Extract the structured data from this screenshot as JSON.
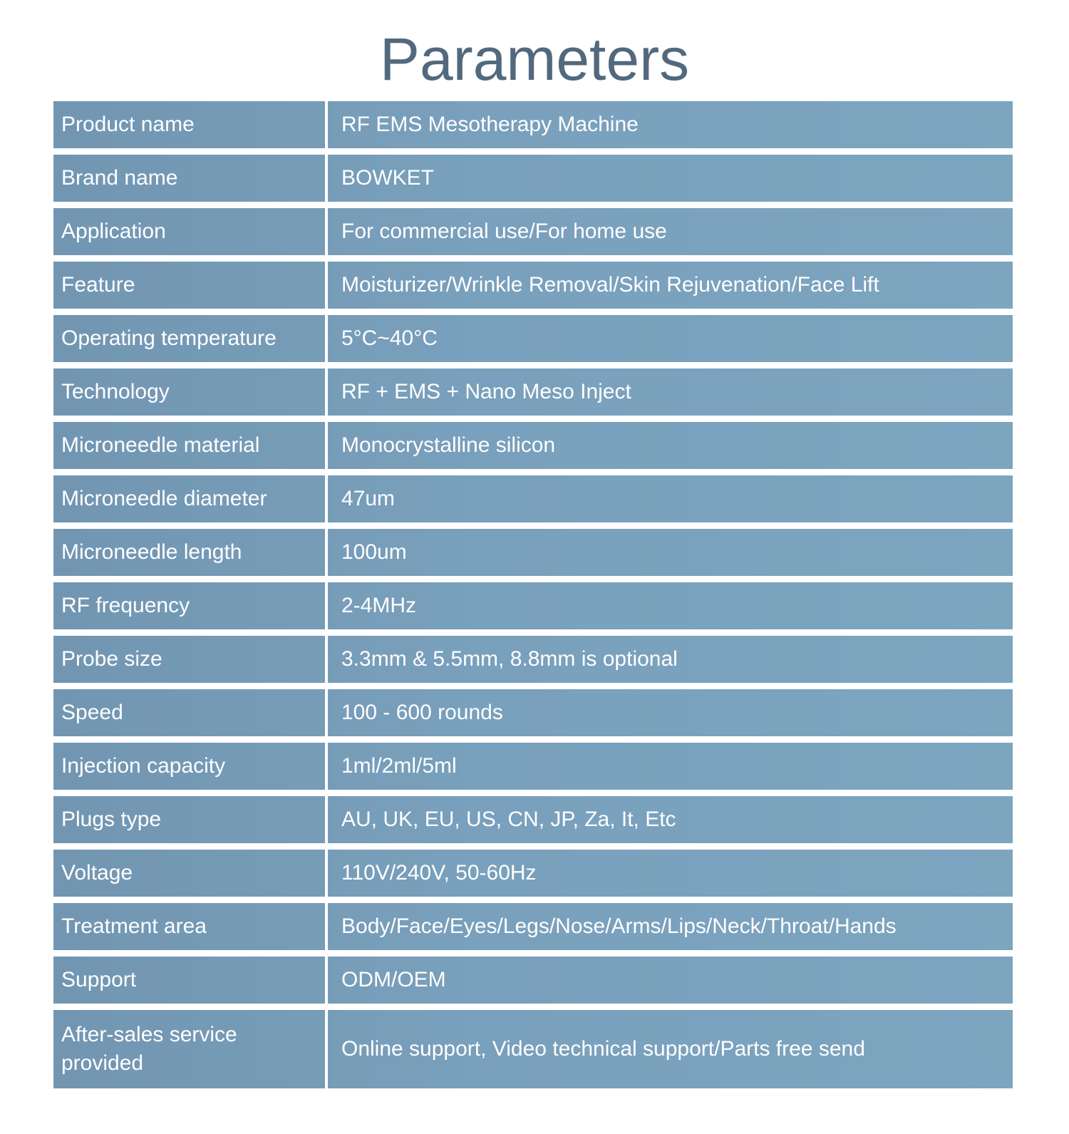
{
  "page": {
    "title": "Parameters"
  },
  "colors": {
    "title_text": "#52697d",
    "cell_background": "#79a0bc",
    "cell_text": "#ffffff",
    "divider": "#ffffff",
    "page_background": "#ffffff"
  },
  "table": {
    "rows": [
      {
        "label": "Product name",
        "value": "RF EMS Mesotherapy Machine"
      },
      {
        "label": "Brand name",
        "value": "BOWKET"
      },
      {
        "label": "Application",
        "value": "For commercial use/For home use"
      },
      {
        "label": "Feature",
        "value": "Moisturizer/Wrinkle Removal/Skin Rejuvenation/Face Lift"
      },
      {
        "label": "Operating temperature",
        "value": "5°C~40°C"
      },
      {
        "label": "Technology",
        "value": "RF + EMS + Nano Meso Inject"
      },
      {
        "label": "Microneedle material",
        "value": "Monocrystalline silicon"
      },
      {
        "label": "Microneedle diameter",
        "value": "47um"
      },
      {
        "label": "Microneedle length",
        "value": "100um"
      },
      {
        "label": "RF frequency",
        "value": "2-4MHz"
      },
      {
        "label": "Probe size",
        "value": "3.3mm & 5.5mm, 8.8mm is optional"
      },
      {
        "label": "Speed",
        "value": "100 - 600 rounds"
      },
      {
        "label": "Injection capacity",
        "value": "1ml/2ml/5ml"
      },
      {
        "label": "Plugs type",
        "value": "AU, UK, EU, US, CN, JP, Za, It, Etc"
      },
      {
        "label": "Voltage",
        "value": "110V/240V, 50-60Hz"
      },
      {
        "label": "Treatment area",
        "value": "Body/Face/Eyes/Legs/Nose/Arms/Lips/Neck/Throat/Hands"
      },
      {
        "label": "Support",
        "value": "ODM/OEM"
      },
      {
        "label": "After-sales service provided",
        "value": "Online support, Video technical support/Parts free send"
      }
    ]
  }
}
